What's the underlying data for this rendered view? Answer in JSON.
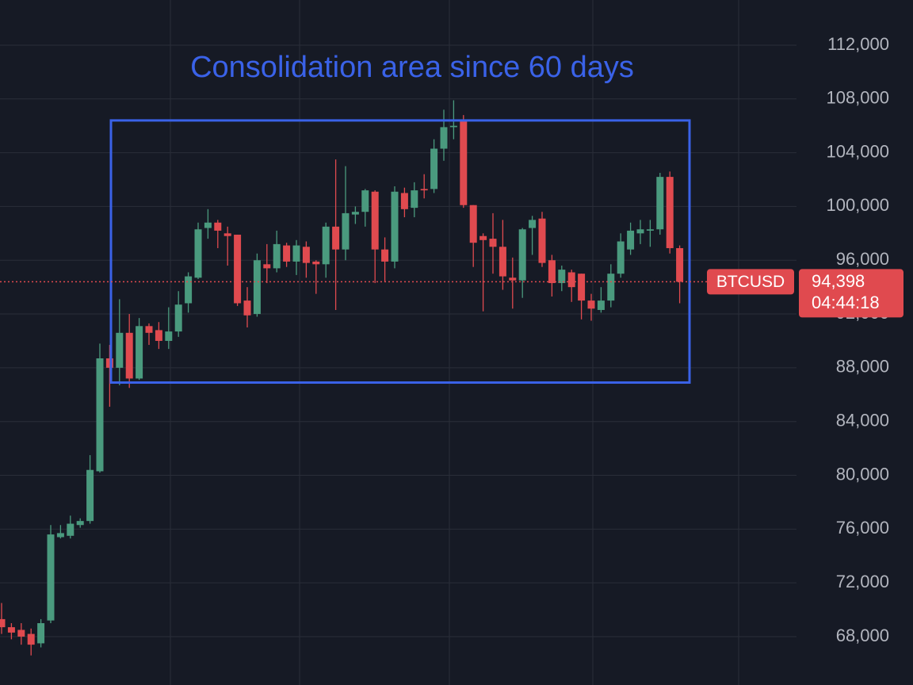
{
  "chart_data": {
    "type": "candlestick",
    "symbol": "BTCUSD",
    "annotation": {
      "text": "Consolidation area since 60 days",
      "high": 106400,
      "low": 86900,
      "color": "#3a62e8"
    },
    "last_price": {
      "value": 94398,
      "label": "94,398"
    },
    "countdown": "04:44:18",
    "up_color": "#4a9a7e",
    "down_color": "#e04a4f",
    "open": [
      69300,
      68700,
      68500,
      68200,
      67500,
      69200,
      75400,
      75500,
      76300,
      76600,
      80300,
      88700,
      88000,
      90600,
      87200,
      91100,
      90800,
      90000,
      90700,
      92800,
      94700,
      98400,
      98800,
      98000,
      97900,
      93000,
      92000,
      95700,
      95400,
      97100,
      95900,
      97000,
      95900,
      95700,
      98500,
      96800,
      99400,
      99600,
      101100,
      96800,
      95900,
      101000,
      99900,
      101300,
      101300,
      104300,
      105900,
      106400,
      100100,
      97800,
      97600,
      97000,
      94700,
      94500,
      98400,
      99100,
      96000,
      94300,
      95100,
      95000,
      93000,
      92300,
      93000,
      95000,
      96800,
      98000,
      98200,
      98300,
      102200,
      96900
    ],
    "high": [
      70500,
      69000,
      69000,
      68600,
      69300,
      76300,
      76300,
      77000,
      76800,
      81500,
      89800,
      89700,
      93100,
      92000,
      91700,
      91300,
      91400,
      92500,
      93700,
      95100,
      98800,
      99800,
      99000,
      98500,
      97900,
      94000,
      96500,
      97200,
      98200,
      97300,
      97500,
      97400,
      96000,
      98800,
      103500,
      103000,
      100000,
      101300,
      101200,
      97700,
      101500,
      101400,
      101800,
      102400,
      105000,
      107200,
      107900,
      106800,
      100100,
      98000,
      99500,
      99000,
      96200,
      98400,
      99300,
      99600,
      96400,
      95600,
      95300,
      95000,
      93500,
      94000,
      95700,
      98000,
      98800,
      99000,
      99000,
      102500,
      102600,
      97100
    ],
    "low": [
      68200,
      67800,
      67400,
      66600,
      67200,
      69000,
      75300,
      75300,
      76100,
      76400,
      80200,
      85100,
      86700,
      86500,
      87100,
      89700,
      89400,
      89400,
      90300,
      92100,
      94600,
      97600,
      96900,
      95600,
      92600,
      91000,
      91800,
      94300,
      95100,
      95500,
      94900,
      94700,
      93500,
      94700,
      92300,
      96000,
      98700,
      98500,
      94300,
      94400,
      95400,
      99200,
      99200,
      100600,
      101000,
      103400,
      105000,
      99900,
      95500,
      92200,
      95000,
      93800,
      92400,
      93200,
      96400,
      95500,
      93300,
      93700,
      92900,
      91600,
      91500,
      92100,
      92500,
      94700,
      96400,
      97200,
      97000,
      97900,
      96500,
      92800
    ],
    "close": [
      68700,
      68300,
      68000,
      67400,
      69000,
      75600,
      75700,
      76400,
      76600,
      80400,
      88700,
      88000,
      90600,
      87200,
      91100,
      90600,
      90000,
      90700,
      92700,
      94800,
      98300,
      98800,
      98200,
      97800,
      92800,
      91900,
      96000,
      95400,
      97200,
      95900,
      97100,
      95800,
      95700,
      98500,
      96800,
      99500,
      99600,
      101200,
      96800,
      95900,
      101100,
      99800,
      101200,
      101200,
      104300,
      105900,
      106000,
      100100,
      97300,
      97500,
      97000,
      94800,
      94500,
      98300,
      99000,
      95800,
      94300,
      95300,
      94000,
      93000,
      92400,
      93000,
      95000,
      97400,
      98200,
      98300,
      98300,
      102200,
      96900,
      94400
    ],
    "ylim": [
      64400,
      115360
    ],
    "yticks": [
      {
        "value": 68000,
        "label": "68,000"
      },
      {
        "value": 72000,
        "label": "72,000"
      },
      {
        "value": 76000,
        "label": "76,000"
      },
      {
        "value": 80000,
        "label": "80,000"
      },
      {
        "value": 84000,
        "label": "84,000"
      },
      {
        "value": 88000,
        "label": "88,000"
      },
      {
        "value": 92000,
        "label": "92,000"
      },
      {
        "value": 96000,
        "label": "96,000"
      },
      {
        "value": 100000,
        "label": "100,000"
      },
      {
        "value": 104000,
        "label": "104,000"
      },
      {
        "value": 108000,
        "label": "108,000"
      },
      {
        "value": 112000,
        "label": "112,000"
      }
    ],
    "grid": true
  }
}
